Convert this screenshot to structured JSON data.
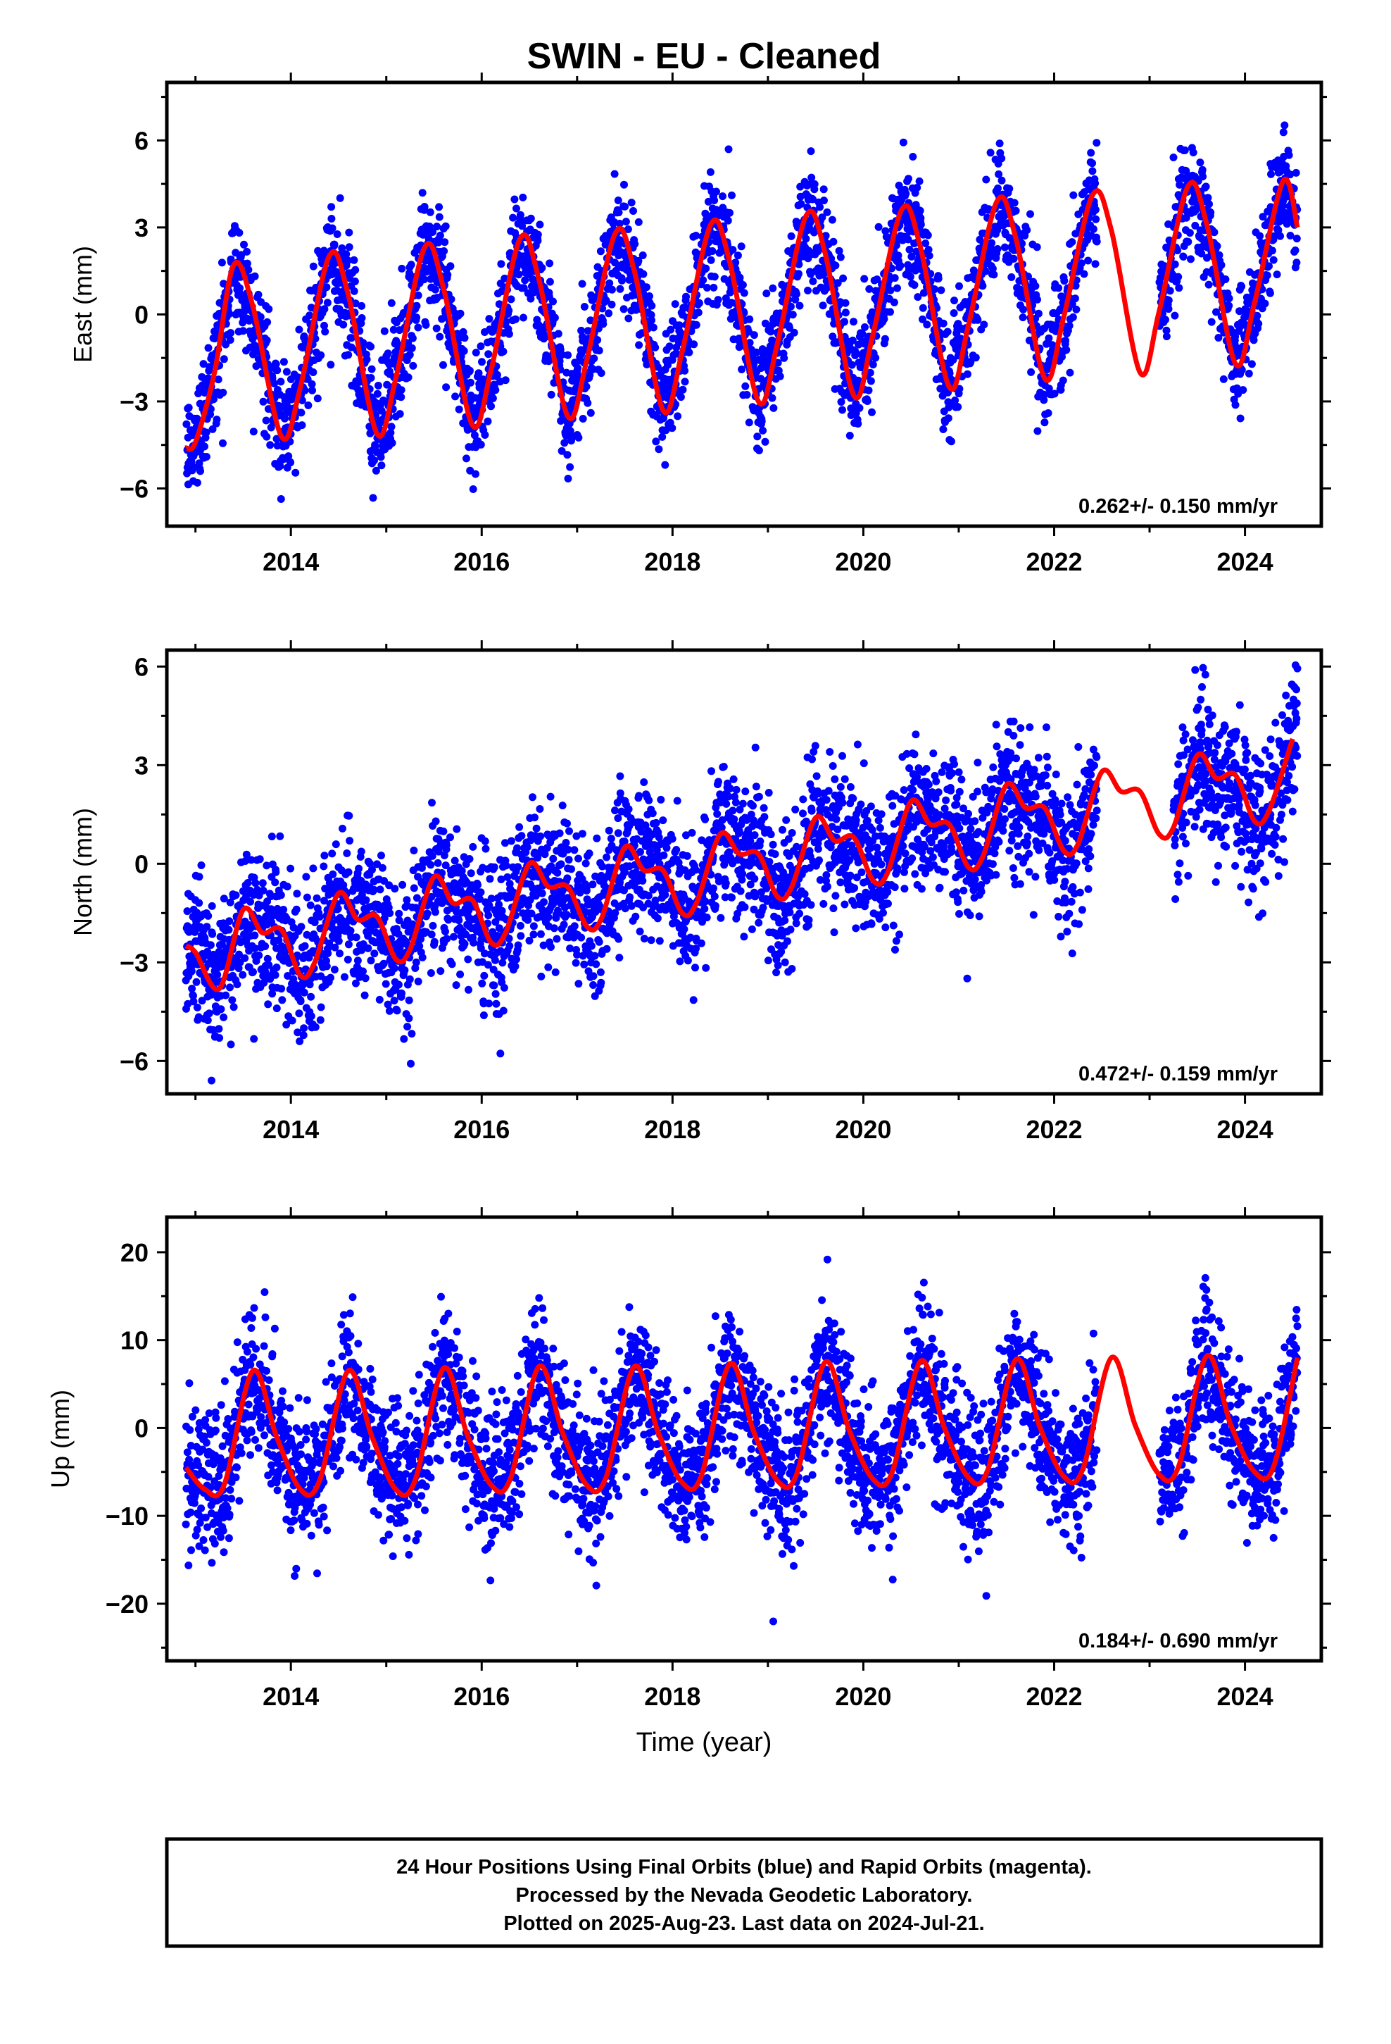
{
  "title": "SWIN  - EU - Cleaned",
  "x_axis_label": "Time (year)",
  "footer_lines": [
    "24 Hour Positions Using Final Orbits (blue) and Rapid Orbits (magenta).",
    "Processed by the Nevada Geodetic Laboratory.",
    "Plotted on 2025-Aug-23. Last data on 2024-Jul-21."
  ],
  "colors": {
    "points": "#0000ff",
    "model": "#ff0000",
    "frame": "#000000"
  },
  "chart_data": [
    {
      "type": "scatter",
      "ylabel": "East (mm)",
      "rate_label": "0.262+/- 0.150 mm/yr",
      "xlim": [
        2012.7,
        2024.8
      ],
      "ylim": [
        -7.3,
        8.0
      ],
      "x_ticks": [
        2014,
        2016,
        2018,
        2020,
        2022,
        2024
      ],
      "y_ticks": [
        -6,
        -3,
        0,
        3,
        6
      ],
      "y_tick_labels": [
        "−6",
        "−3",
        "0",
        "3",
        "6"
      ],
      "grid": false,
      "data_range": [
        2012.9,
        2024.55
      ],
      "gaps": [
        [
          2022.45,
          2023.1
        ]
      ],
      "trend_mm_per_yr": 0.262,
      "model": {
        "x": [
          2012.9,
          2013.0,
          2013.2,
          2013.4,
          2013.6,
          2013.9,
          2014.1,
          2014.4,
          2014.6,
          2014.9,
          2015.1,
          2015.4,
          2015.6,
          2015.9,
          2016.1,
          2016.4,
          2016.6,
          2016.9,
          2017.1,
          2017.4,
          2017.6,
          2017.9,
          2018.1,
          2018.4,
          2018.6,
          2018.9,
          2019.1,
          2019.4,
          2019.6,
          2019.9,
          2020.1,
          2020.4,
          2020.6,
          2020.9,
          2021.1,
          2021.4,
          2021.6,
          2021.9,
          2022.1,
          2022.4,
          2022.6,
          2022.9,
          2023.1,
          2023.4,
          2023.6,
          2023.9,
          2024.1,
          2024.4,
          2024.55
        ],
        "y": [
          -4.6,
          -4.4,
          -2.0,
          1.7,
          0.3,
          -4.2,
          -2.5,
          2.0,
          0.7,
          -4.1,
          -2.2,
          2.3,
          0.9,
          -3.8,
          -1.9,
          2.6,
          1.2,
          -3.5,
          -1.6,
          2.8,
          1.5,
          -3.3,
          -1.3,
          3.1,
          1.8,
          -3.0,
          -1.0,
          3.4,
          2.1,
          -2.8,
          -0.7,
          3.6,
          2.3,
          -2.5,
          -0.4,
          3.9,
          2.6,
          -2.2,
          -0.1,
          4.1,
          2.9,
          -2.0,
          0.1,
          4.4,
          3.1,
          -1.7,
          0.4,
          4.6,
          3.0
        ]
      },
      "scatter_stats": {
        "amplitude_mm": 3.0,
        "phase_peak_fraction": 0.42,
        "noise_sd_mm": 1.0,
        "mean_at_start_mm": -1.3
      }
    },
    {
      "type": "scatter",
      "ylabel": "North (mm)",
      "rate_label": "0.472+/- 0.159 mm/yr",
      "xlim": [
        2012.7,
        2024.8
      ],
      "ylim": [
        -7.0,
        6.5
      ],
      "x_ticks": [
        2014,
        2016,
        2018,
        2020,
        2022,
        2024
      ],
      "y_ticks": [
        -6,
        -3,
        0,
        3,
        6
      ],
      "y_tick_labels": [
        "−6",
        "−3",
        "0",
        "3",
        "6"
      ],
      "grid": false,
      "data_range": [
        2012.9,
        2024.55
      ],
      "gaps": [
        [
          2022.45,
          2023.25
        ]
      ],
      "trend_mm_per_yr": 0.472,
      "model": {
        "x": [
          2012.9,
          2013.0,
          2013.25,
          2013.5,
          2013.7,
          2013.9,
          2014.1,
          2014.25,
          2014.5,
          2014.7,
          2014.9,
          2015.1,
          2015.25,
          2015.5,
          2015.7,
          2015.9,
          2016.1,
          2016.25,
          2016.5,
          2016.7,
          2016.9,
          2017.1,
          2017.25,
          2017.5,
          2017.7,
          2017.9,
          2018.1,
          2018.25,
          2018.5,
          2018.7,
          2018.9,
          2019.1,
          2019.25,
          2019.5,
          2019.7,
          2019.9,
          2020.1,
          2020.25,
          2020.5,
          2020.7,
          2020.9,
          2021.1,
          2021.25,
          2021.5,
          2021.7,
          2021.9,
          2022.1,
          2022.25,
          2022.5,
          2022.7,
          2022.9,
          2023.1,
          2023.25,
          2023.5,
          2023.7,
          2023.9,
          2024.1,
          2024.25,
          2024.5
        ],
        "y": [
          -2.5,
          -2.7,
          -3.8,
          -1.4,
          -2.1,
          -2.0,
          -3.4,
          -3.0,
          -0.9,
          -1.7,
          -1.6,
          -2.9,
          -2.6,
          -0.4,
          -1.2,
          -1.1,
          -2.4,
          -2.1,
          0.0,
          -0.7,
          -0.7,
          -1.9,
          -1.7,
          0.5,
          -0.2,
          -0.2,
          -1.5,
          -1.2,
          0.9,
          0.3,
          0.3,
          -1.0,
          -0.7,
          1.4,
          0.7,
          0.8,
          -0.5,
          -0.3,
          1.9,
          1.2,
          1.2,
          -0.1,
          0.2,
          2.4,
          1.7,
          1.7,
          0.4,
          0.6,
          2.8,
          2.2,
          2.2,
          0.9,
          1.1,
          3.3,
          2.6,
          2.7,
          1.3,
          1.6,
          3.8
        ]
      },
      "scatter_stats": {
        "noise_sd_mm": 1.1,
        "mean_at_start_mm": -3.0
      }
    },
    {
      "type": "scatter",
      "ylabel": "Up (mm)",
      "rate_label": "0.184+/- 0.690 mm/yr",
      "xlim": [
        2012.7,
        2024.8
      ],
      "ylim": [
        -26.5,
        24.0
      ],
      "x_ticks": [
        2014,
        2016,
        2018,
        2020,
        2022,
        2024
      ],
      "y_ticks": [
        -20,
        -10,
        0,
        10,
        20
      ],
      "y_tick_labels": [
        "−20",
        "−10",
        "0",
        "10",
        "20"
      ],
      "grid": false,
      "data_range": [
        2012.9,
        2024.55
      ],
      "gaps": [
        [
          2022.45,
          2023.1
        ]
      ],
      "trend_mm_per_yr": 0.184,
      "model": {
        "x": [
          2012.9,
          2013.1,
          2013.3,
          2013.6,
          2013.85,
          2014.1,
          2014.3,
          2014.6,
          2014.85,
          2015.1,
          2015.3,
          2015.6,
          2015.85,
          2016.1,
          2016.3,
          2016.6,
          2016.85,
          2017.1,
          2017.3,
          2017.6,
          2017.85,
          2018.1,
          2018.3,
          2018.6,
          2018.85,
          2019.1,
          2019.3,
          2019.6,
          2019.85,
          2020.1,
          2020.3,
          2020.6,
          2020.85,
          2021.1,
          2021.3,
          2021.6,
          2021.85,
          2022.1,
          2022.3,
          2022.6,
          2022.85,
          2023.1,
          2023.3,
          2023.6,
          2023.85,
          2024.1,
          2024.3,
          2024.55
        ],
        "y": [
          -4.5,
          -7.0,
          -6.5,
          6.5,
          -1.0,
          -7.0,
          -6.0,
          6.5,
          -1.0,
          -7.0,
          -6.0,
          6.8,
          -0.8,
          -6.5,
          -5.8,
          7.0,
          -0.6,
          -6.5,
          -5.7,
          7.0,
          -0.5,
          -6.2,
          -5.5,
          7.3,
          -0.4,
          -6.0,
          -5.3,
          7.5,
          -0.2,
          -5.8,
          -5.1,
          7.6,
          0.0,
          -5.6,
          -4.9,
          7.8,
          0.1,
          -5.5,
          -4.7,
          8.0,
          0.3,
          -5.3,
          -4.5,
          8.2,
          0.4,
          -5.0,
          -4.4,
          8.0
        ]
      },
      "scatter_stats": {
        "amplitude_mm": 7.0,
        "phase_peak_fraction": 0.62,
        "noise_sd_mm": 4.0,
        "mean_at_start_mm": 0.0
      }
    }
  ]
}
